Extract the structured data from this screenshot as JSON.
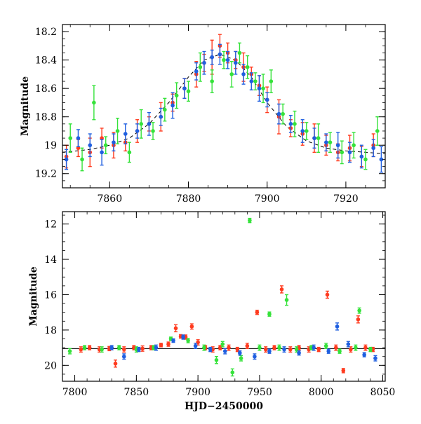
{
  "chart_data": [
    {
      "type": "scatter",
      "ylabel": "Magnitude",
      "xlabel": "",
      "xlim": [
        7848,
        7930
      ],
      "ylim": [
        19.3,
        18.15
      ],
      "y_inverted": true,
      "xticks": [
        7860,
        7880,
        7900,
        7920
      ],
      "yticks": [
        18.2,
        18.4,
        18.6,
        18.8,
        19,
        19.2
      ],
      "xtick_labels": [
        "7860",
        "7880",
        "7900",
        "7920"
      ],
      "ytick_labels": [
        "18.2",
        "18.4",
        "18.6",
        "18.8",
        "19",
        "19.2"
      ],
      "colors": {
        "red": "#ff3b1f",
        "green": "#35e23a",
        "blue": "#1f5fe0",
        "model": "#000000"
      },
      "model_curve": {
        "style": "dashed",
        "x": [
          7848,
          7855,
          7860,
          7865,
          7870,
          7875,
          7880,
          7884,
          7888,
          7892,
          7896,
          7900,
          7905,
          7910,
          7915,
          7920,
          7925,
          7930
        ],
        "y": [
          19.05,
          19.03,
          19.0,
          18.95,
          18.85,
          18.7,
          18.52,
          18.4,
          18.36,
          18.4,
          18.52,
          18.7,
          18.87,
          18.97,
          19.02,
          19.04,
          19.05,
          19.06
        ]
      },
      "series": [
        {
          "color": "red",
          "x": [
            7849,
            7852,
            7855,
            7858,
            7861,
            7864,
            7867,
            7870,
            7873,
            7876,
            7879,
            7882,
            7884,
            7886,
            7888,
            7890,
            7892,
            7894,
            7896,
            7898,
            7900,
            7903,
            7906,
            7909,
            7912,
            7915,
            7918,
            7921,
            7924,
            7927
          ],
          "y": [
            19.08,
            19.02,
            19.05,
            18.95,
            19.0,
            18.98,
            18.9,
            18.85,
            18.8,
            18.7,
            18.6,
            18.5,
            18.42,
            18.38,
            18.3,
            18.35,
            18.4,
            18.45,
            18.5,
            18.58,
            18.68,
            18.8,
            18.88,
            18.92,
            18.95,
            19.0,
            19.05,
            19.02,
            19.08,
            19.0
          ],
          "err": [
            0.08,
            0.06,
            0.1,
            0.07,
            0.09,
            0.06,
            0.08,
            0.05,
            0.1,
            0.06,
            0.07,
            0.09,
            0.06,
            0.12,
            0.08,
            0.07,
            0.06,
            0.1,
            0.05,
            0.07,
            0.09,
            0.12,
            0.06,
            0.08,
            0.1,
            0.07,
            0.06,
            0.09,
            0.07,
            0.08
          ]
        },
        {
          "color": "green",
          "x": [
            7850,
            7853,
            7856,
            7859,
            7862,
            7865,
            7868,
            7871,
            7874,
            7877,
            7880,
            7883,
            7886,
            7889,
            7891,
            7893,
            7895,
            7897,
            7899,
            7901,
            7904,
            7907,
            7910,
            7913,
            7916,
            7919,
            7922,
            7925,
            7928
          ],
          "y": [
            18.95,
            19.1,
            18.7,
            19.0,
            18.9,
            19.05,
            18.85,
            18.9,
            18.75,
            18.65,
            18.62,
            18.45,
            18.55,
            18.4,
            18.5,
            18.35,
            18.45,
            18.55,
            18.6,
            18.55,
            18.78,
            18.85,
            18.9,
            18.95,
            18.98,
            19.05,
            19.0,
            19.1,
            18.9
          ],
          "err": [
            0.1,
            0.08,
            0.12,
            0.06,
            0.09,
            0.07,
            0.1,
            0.06,
            0.08,
            0.09,
            0.07,
            0.1,
            0.08,
            0.06,
            0.09,
            0.07,
            0.08,
            0.06,
            0.1,
            0.08,
            0.07,
            0.09,
            0.06,
            0.1,
            0.07,
            0.08,
            0.09,
            0.07,
            0.1
          ]
        },
        {
          "color": "blue",
          "x": [
            7849,
            7852,
            7855,
            7858,
            7861,
            7864,
            7867,
            7870,
            7873,
            7876,
            7879,
            7882,
            7884,
            7886,
            7888,
            7890,
            7892,
            7894,
            7896,
            7898,
            7900,
            7903,
            7906,
            7909,
            7912,
            7915,
            7918,
            7921,
            7924,
            7927,
            7929
          ],
          "y": [
            19.1,
            18.95,
            19.0,
            19.05,
            18.98,
            18.92,
            18.9,
            18.85,
            18.8,
            18.72,
            18.6,
            18.48,
            18.42,
            18.38,
            18.36,
            18.4,
            18.42,
            18.5,
            18.55,
            18.6,
            18.68,
            18.78,
            18.85,
            18.9,
            18.95,
            18.98,
            19.0,
            19.05,
            19.08,
            19.02,
            19.1
          ],
          "err": [
            0.07,
            0.06,
            0.08,
            0.09,
            0.06,
            0.07,
            0.05,
            0.08,
            0.06,
            0.09,
            0.07,
            0.06,
            0.08,
            0.05,
            0.07,
            0.06,
            0.08,
            0.07,
            0.06,
            0.09,
            0.05,
            0.07,
            0.06,
            0.08,
            0.07,
            0.06,
            0.09,
            0.07,
            0.08,
            0.06,
            0.09
          ]
        }
      ]
    },
    {
      "type": "scatter",
      "ylabel": "Magnitude",
      "xlabel": "HJD−2450000",
      "xlim": [
        7790,
        8052
      ],
      "ylim": [
        20.9,
        11.3
      ],
      "y_inverted": true,
      "xticks": [
        7800,
        7850,
        7900,
        7950,
        8000,
        8050
      ],
      "yticks": [
        12,
        14,
        16,
        18,
        20
      ],
      "xtick_labels": [
        "7800",
        "7850",
        "7900",
        "7950",
        "8000",
        "8050"
      ],
      "ytick_labels": [
        "12",
        "14",
        "16",
        "18",
        "20"
      ],
      "colors": {
        "red": "#ff3b1f",
        "green": "#35e23a",
        "blue": "#1f5fe0",
        "baseline": "#000000"
      },
      "baseline_mag": 19.05,
      "series": [
        {
          "color": "red",
          "x": [
            7805,
            7812,
            7820,
            7828,
            7833,
            7840,
            7848,
            7855,
            7862,
            7870,
            7876,
            7882,
            7886,
            7890,
            7895,
            7900,
            7906,
            7912,
            7918,
            7925,
            7932,
            7940,
            7948,
            7955,
            7962,
            7968,
            7975,
            7982,
            7990,
            7998,
            8005,
            8012,
            8018,
            8024,
            8030,
            8036,
            8042
          ],
          "y": [
            19.1,
            19.0,
            19.1,
            19.05,
            19.9,
            19.1,
            19.0,
            19.05,
            19.0,
            18.85,
            18.8,
            17.9,
            18.36,
            18.4,
            17.8,
            18.7,
            19.0,
            19.1,
            19.0,
            19.0,
            19.1,
            18.9,
            17.0,
            19.1,
            19.0,
            15.7,
            19.1,
            19.0,
            19.1,
            19.1,
            16.0,
            19.0,
            20.3,
            19.1,
            17.4,
            19.0,
            19.1
          ],
          "err": [
            0.15,
            0.12,
            0.15,
            0.12,
            0.2,
            0.15,
            0.12,
            0.15,
            0.12,
            0.1,
            0.12,
            0.2,
            0.1,
            0.12,
            0.15,
            0.15,
            0.12,
            0.15,
            0.12,
            0.15,
            0.12,
            0.15,
            0.12,
            0.15,
            0.12,
            0.2,
            0.15,
            0.12,
            0.15,
            0.12,
            0.2,
            0.15,
            0.12,
            0.15,
            0.2,
            0.15,
            0.12
          ]
        },
        {
          "color": "green",
          "x": [
            7796,
            7808,
            7822,
            7836,
            7850,
            7864,
            7878,
            7892,
            7905,
            7915,
            7920,
            7928,
            7935,
            7942,
            7950,
            7958,
            7966,
            7972,
            7980,
            7992,
            8004,
            8015,
            8028,
            8031,
            8040
          ],
          "y": [
            19.2,
            19.0,
            19.1,
            19.0,
            19.1,
            19.0,
            18.5,
            18.6,
            19.0,
            19.7,
            18.8,
            20.4,
            19.6,
            11.8,
            19.0,
            17.1,
            19.0,
            16.3,
            19.1,
            19.0,
            18.9,
            19.2,
            19.0,
            16.9,
            19.1
          ],
          "err": [
            0.15,
            0.12,
            0.15,
            0.12,
            0.15,
            0.12,
            0.1,
            0.12,
            0.15,
            0.2,
            0.15,
            0.2,
            0.15,
            0.12,
            0.15,
            0.12,
            0.15,
            0.3,
            0.15,
            0.12,
            0.15,
            0.12,
            0.15,
            0.15,
            0.12
          ]
        },
        {
          "color": "blue",
          "x": [
            7830,
            7840,
            7852,
            7866,
            7880,
            7888,
            7898,
            7910,
            7922,
            7934,
            7946,
            7958,
            7970,
            7982,
            7994,
            8006,
            8013,
            8022,
            8035,
            8044
          ],
          "y": [
            19.0,
            19.5,
            19.1,
            19.0,
            18.6,
            18.4,
            18.9,
            19.1,
            19.2,
            19.3,
            19.5,
            19.2,
            19.1,
            19.3,
            19.0,
            19.2,
            17.8,
            18.8,
            19.4,
            19.6
          ],
          "err": [
            0.12,
            0.15,
            0.12,
            0.15,
            0.1,
            0.12,
            0.15,
            0.12,
            0.15,
            0.12,
            0.15,
            0.12,
            0.15,
            0.12,
            0.15,
            0.12,
            0.2,
            0.15,
            0.12,
            0.15
          ]
        }
      ]
    }
  ]
}
